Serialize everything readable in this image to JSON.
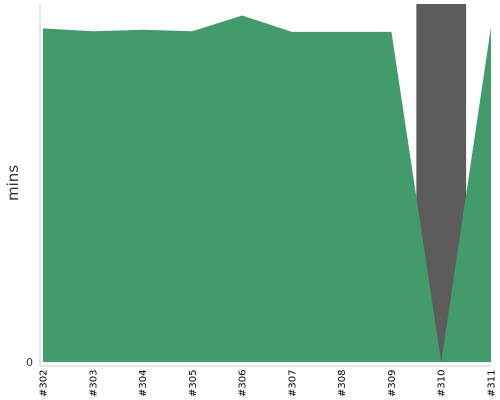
{
  "chart_data": {
    "type": "area",
    "title": "",
    "xlabel": "",
    "ylabel": "mins",
    "categories": [
      "#302",
      "#303",
      "#304",
      "#305",
      "#306",
      "#307",
      "#308",
      "#309",
      "#310",
      "#311"
    ],
    "series": [
      {
        "values": [
          46.6,
          46.2,
          46.4,
          46.2,
          48.4,
          46.1,
          46.1,
          46.1,
          0,
          46.8
        ]
      }
    ],
    "y_ticks": [
      "0"
    ],
    "ylim": [
      0,
      50
    ],
    "grid": false,
    "colors": {
      "fill": "#439b6b",
      "dip": "#5c5c5c",
      "axis": "#cccccc",
      "text": "#333333"
    }
  }
}
